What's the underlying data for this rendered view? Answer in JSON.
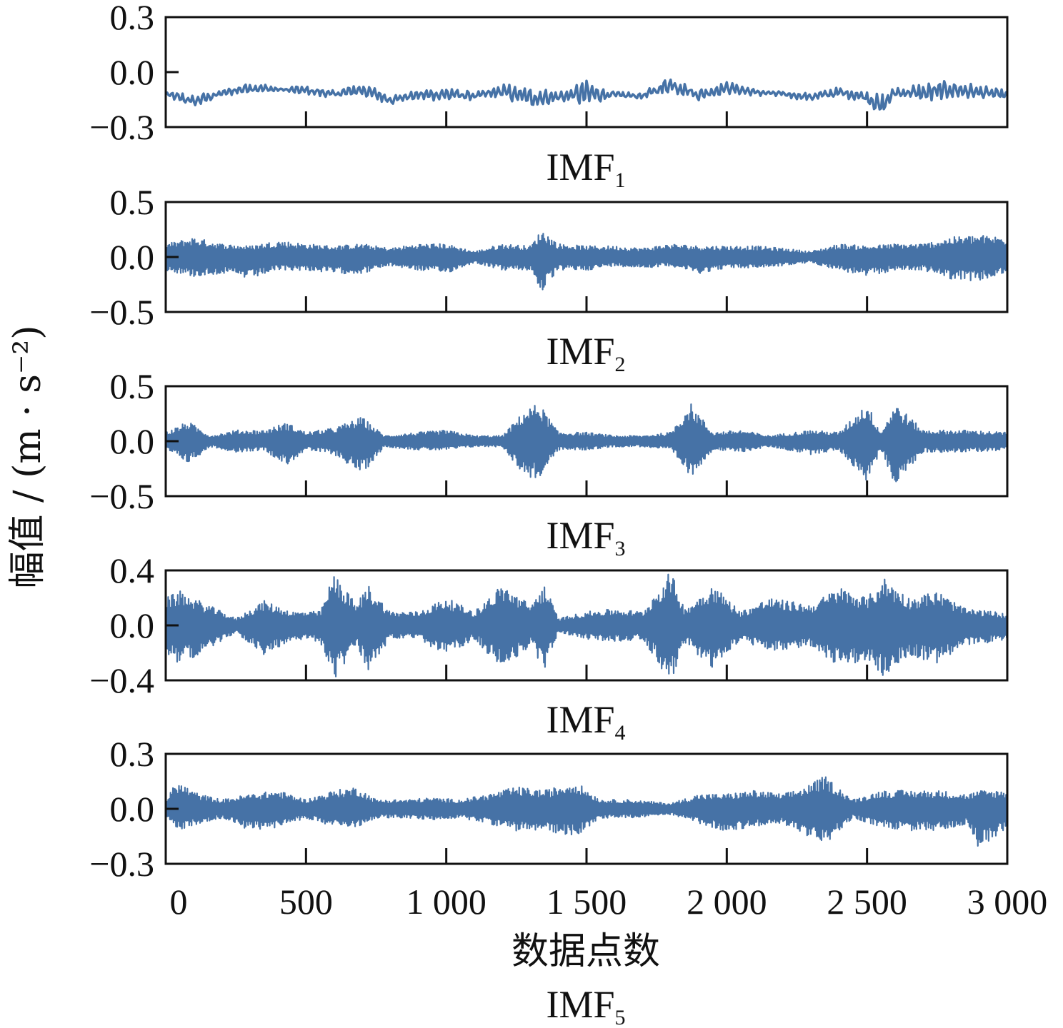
{
  "colors": {
    "series": "#4672a6",
    "axis": "#111111",
    "background": "#ffffff"
  },
  "chart_data": {
    "type": "line",
    "ylabel": "幅值 / (m · s⁻²)",
    "xlabel": "数据点数",
    "xlim": [
      0,
      3000
    ],
    "xticks": [
      0,
      500,
      1000,
      1500,
      2000,
      2500,
      3000
    ],
    "xtick_labels": [
      "0",
      "500",
      "1 000",
      "1 500",
      "2 000",
      "2 500",
      "3 000"
    ],
    "grid": false,
    "panels": [
      {
        "name": "IMF1",
        "title": "IMF",
        "title_sub": "1",
        "ylim": [
          -0.3,
          0.3
        ],
        "yticks": [
          "0.3",
          "0.0",
          "−0.3"
        ],
        "style": "line",
        "envelope": [
          [
            0,
            -0.1,
            -0.14
          ],
          [
            100,
            -0.12,
            -0.2
          ],
          [
            200,
            -0.1,
            -0.13
          ],
          [
            300,
            -0.05,
            -0.12
          ],
          [
            400,
            -0.08,
            -0.11
          ],
          [
            500,
            -0.07,
            -0.13
          ],
          [
            600,
            -0.1,
            -0.14
          ],
          [
            700,
            -0.05,
            -0.14
          ],
          [
            800,
            -0.12,
            -0.18
          ],
          [
            900,
            -0.1,
            -0.15
          ],
          [
            1000,
            -0.07,
            -0.17
          ],
          [
            1100,
            -0.11,
            -0.15
          ],
          [
            1200,
            -0.06,
            -0.15
          ],
          [
            1300,
            -0.08,
            -0.2
          ],
          [
            1400,
            -0.1,
            -0.17
          ],
          [
            1500,
            -0.04,
            -0.19
          ],
          [
            1600,
            -0.1,
            -0.15
          ],
          [
            1700,
            -0.11,
            -0.15
          ],
          [
            1800,
            -0.01,
            -0.12
          ],
          [
            1900,
            -0.09,
            -0.16
          ],
          [
            2000,
            -0.05,
            -0.12
          ],
          [
            2100,
            -0.09,
            -0.13
          ],
          [
            2200,
            -0.1,
            -0.14
          ],
          [
            2300,
            -0.11,
            -0.16
          ],
          [
            2400,
            -0.08,
            -0.14
          ],
          [
            2500,
            -0.1,
            -0.17
          ],
          [
            2550,
            -0.12,
            -0.26
          ],
          [
            2600,
            -0.08,
            -0.14
          ],
          [
            2700,
            -0.06,
            -0.17
          ],
          [
            2800,
            -0.04,
            -0.15
          ],
          [
            2900,
            -0.07,
            -0.15
          ],
          [
            3000,
            -0.1,
            -0.15
          ]
        ]
      },
      {
        "name": "IMF2",
        "title": "IMF",
        "title_sub": "2",
        "ylim": [
          -0.5,
          0.5
        ],
        "yticks": [
          "0.5",
          "0.0",
          "−0.5"
        ],
        "style": "band",
        "envelope": [
          [
            0,
            0.12,
            -0.12
          ],
          [
            100,
            0.18,
            -0.18
          ],
          [
            200,
            0.12,
            -0.15
          ],
          [
            300,
            0.1,
            -0.2
          ],
          [
            400,
            0.15,
            -0.12
          ],
          [
            500,
            0.12,
            -0.12
          ],
          [
            600,
            0.1,
            -0.15
          ],
          [
            700,
            0.12,
            -0.15
          ],
          [
            800,
            0.08,
            -0.08
          ],
          [
            900,
            0.12,
            -0.12
          ],
          [
            1000,
            0.12,
            -0.15
          ],
          [
            1100,
            0.05,
            -0.05
          ],
          [
            1200,
            0.12,
            -0.12
          ],
          [
            1300,
            0.1,
            -0.12
          ],
          [
            1340,
            0.25,
            -0.32
          ],
          [
            1400,
            0.12,
            -0.12
          ],
          [
            1500,
            0.1,
            -0.12
          ],
          [
            1600,
            0.1,
            -0.08
          ],
          [
            1700,
            0.08,
            -0.1
          ],
          [
            1800,
            0.12,
            -0.08
          ],
          [
            1900,
            0.1,
            -0.15
          ],
          [
            2000,
            0.1,
            -0.1
          ],
          [
            2100,
            0.1,
            -0.1
          ],
          [
            2200,
            0.08,
            -0.08
          ],
          [
            2300,
            0.05,
            -0.05
          ],
          [
            2400,
            0.12,
            -0.12
          ],
          [
            2500,
            0.1,
            -0.18
          ],
          [
            2600,
            0.12,
            -0.12
          ],
          [
            2700,
            0.12,
            -0.12
          ],
          [
            2800,
            0.18,
            -0.2
          ],
          [
            2900,
            0.2,
            -0.22
          ],
          [
            3000,
            0.18,
            -0.15
          ]
        ]
      },
      {
        "name": "IMF3",
        "title": "IMF",
        "title_sub": "3",
        "ylim": [
          -0.5,
          0.5
        ],
        "yticks": [
          "0.5",
          "0.0",
          "−0.5"
        ],
        "style": "band",
        "envelope": [
          [
            0,
            0.08,
            -0.08
          ],
          [
            80,
            0.18,
            -0.2
          ],
          [
            160,
            0.05,
            -0.05
          ],
          [
            250,
            0.1,
            -0.1
          ],
          [
            350,
            0.1,
            -0.08
          ],
          [
            430,
            0.17,
            -0.22
          ],
          [
            500,
            0.08,
            -0.08
          ],
          [
            600,
            0.12,
            -0.12
          ],
          [
            700,
            0.22,
            -0.3
          ],
          [
            780,
            0.05,
            -0.05
          ],
          [
            900,
            0.08,
            -0.08
          ],
          [
            1000,
            0.1,
            -0.08
          ],
          [
            1100,
            0.05,
            -0.05
          ],
          [
            1200,
            0.05,
            -0.05
          ],
          [
            1280,
            0.28,
            -0.32
          ],
          [
            1330,
            0.35,
            -0.35
          ],
          [
            1400,
            0.08,
            -0.08
          ],
          [
            1500,
            0.08,
            -0.08
          ],
          [
            1600,
            0.05,
            -0.05
          ],
          [
            1700,
            0.05,
            -0.05
          ],
          [
            1800,
            0.08,
            -0.08
          ],
          [
            1870,
            0.35,
            -0.33
          ],
          [
            1950,
            0.08,
            -0.08
          ],
          [
            2050,
            0.1,
            -0.1
          ],
          [
            2150,
            0.05,
            -0.05
          ],
          [
            2300,
            0.1,
            -0.12
          ],
          [
            2400,
            0.08,
            -0.08
          ],
          [
            2500,
            0.35,
            -0.37
          ],
          [
            2550,
            0.08,
            -0.08
          ],
          [
            2600,
            0.35,
            -0.4
          ],
          [
            2700,
            0.1,
            -0.1
          ],
          [
            2850,
            0.1,
            -0.1
          ],
          [
            3000,
            0.08,
            -0.08
          ]
        ]
      },
      {
        "name": "IMF4",
        "title": "IMF",
        "title_sub": "4",
        "ylim": [
          -0.4,
          0.4
        ],
        "yticks": [
          "0.4",
          "0.0",
          "−0.4"
        ],
        "style": "band",
        "envelope": [
          [
            0,
            0.2,
            -0.2
          ],
          [
            50,
            0.25,
            -0.28
          ],
          [
            150,
            0.15,
            -0.18
          ],
          [
            250,
            0.05,
            -0.05
          ],
          [
            350,
            0.18,
            -0.22
          ],
          [
            450,
            0.1,
            -0.1
          ],
          [
            550,
            0.1,
            -0.12
          ],
          [
            600,
            0.38,
            -0.4
          ],
          [
            680,
            0.15,
            -0.15
          ],
          [
            720,
            0.3,
            -0.33
          ],
          [
            800,
            0.1,
            -0.1
          ],
          [
            900,
            0.1,
            -0.1
          ],
          [
            1000,
            0.2,
            -0.22
          ],
          [
            1100,
            0.1,
            -0.1
          ],
          [
            1200,
            0.3,
            -0.32
          ],
          [
            1300,
            0.15,
            -0.15
          ],
          [
            1350,
            0.3,
            -0.32
          ],
          [
            1400,
            0.05,
            -0.05
          ],
          [
            1500,
            0.1,
            -0.1
          ],
          [
            1600,
            0.12,
            -0.12
          ],
          [
            1700,
            0.1,
            -0.1
          ],
          [
            1800,
            0.4,
            -0.42
          ],
          [
            1850,
            0.12,
            -0.12
          ],
          [
            1950,
            0.3,
            -0.33
          ],
          [
            2050,
            0.1,
            -0.1
          ],
          [
            2150,
            0.2,
            -0.2
          ],
          [
            2300,
            0.15,
            -0.15
          ],
          [
            2400,
            0.28,
            -0.3
          ],
          [
            2500,
            0.2,
            -0.25
          ],
          [
            2560,
            0.35,
            -0.38
          ],
          [
            2650,
            0.2,
            -0.22
          ],
          [
            2750,
            0.25,
            -0.28
          ],
          [
            2850,
            0.12,
            -0.15
          ],
          [
            2950,
            0.1,
            -0.12
          ],
          [
            3000,
            0.08,
            -0.1
          ]
        ]
      },
      {
        "name": "IMF5",
        "title": "IMF",
        "title_sub": "5",
        "ylim": [
          -0.3,
          0.3
        ],
        "yticks": [
          "0.3",
          "0.0",
          "−0.3"
        ],
        "style": "band",
        "envelope": [
          [
            0,
            0.05,
            -0.05
          ],
          [
            40,
            0.15,
            -0.12
          ],
          [
            120,
            0.08,
            -0.08
          ],
          [
            200,
            0.05,
            -0.05
          ],
          [
            300,
            0.08,
            -0.12
          ],
          [
            400,
            0.1,
            -0.1
          ],
          [
            500,
            0.05,
            -0.05
          ],
          [
            600,
            0.1,
            -0.1
          ],
          [
            680,
            0.12,
            -0.1
          ],
          [
            750,
            0.05,
            -0.05
          ],
          [
            850,
            0.05,
            -0.05
          ],
          [
            950,
            0.06,
            -0.06
          ],
          [
            1050,
            0.05,
            -0.05
          ],
          [
            1150,
            0.08,
            -0.08
          ],
          [
            1250,
            0.12,
            -0.12
          ],
          [
            1350,
            0.1,
            -0.12
          ],
          [
            1460,
            0.15,
            -0.15
          ],
          [
            1550,
            0.05,
            -0.05
          ],
          [
            1650,
            0.05,
            -0.05
          ],
          [
            1800,
            0.03,
            -0.03
          ],
          [
            1900,
            0.08,
            -0.08
          ],
          [
            1990,
            0.08,
            -0.12
          ],
          [
            2100,
            0.1,
            -0.1
          ],
          [
            2200,
            0.08,
            -0.08
          ],
          [
            2280,
            0.12,
            -0.14
          ],
          [
            2350,
            0.18,
            -0.2
          ],
          [
            2450,
            0.05,
            -0.05
          ],
          [
            2550,
            0.1,
            -0.1
          ],
          [
            2650,
            0.1,
            -0.12
          ],
          [
            2760,
            0.1,
            -0.12
          ],
          [
            2860,
            0.08,
            -0.08
          ],
          [
            2900,
            0.1,
            -0.22
          ],
          [
            3000,
            0.1,
            -0.1
          ]
        ]
      }
    ]
  }
}
